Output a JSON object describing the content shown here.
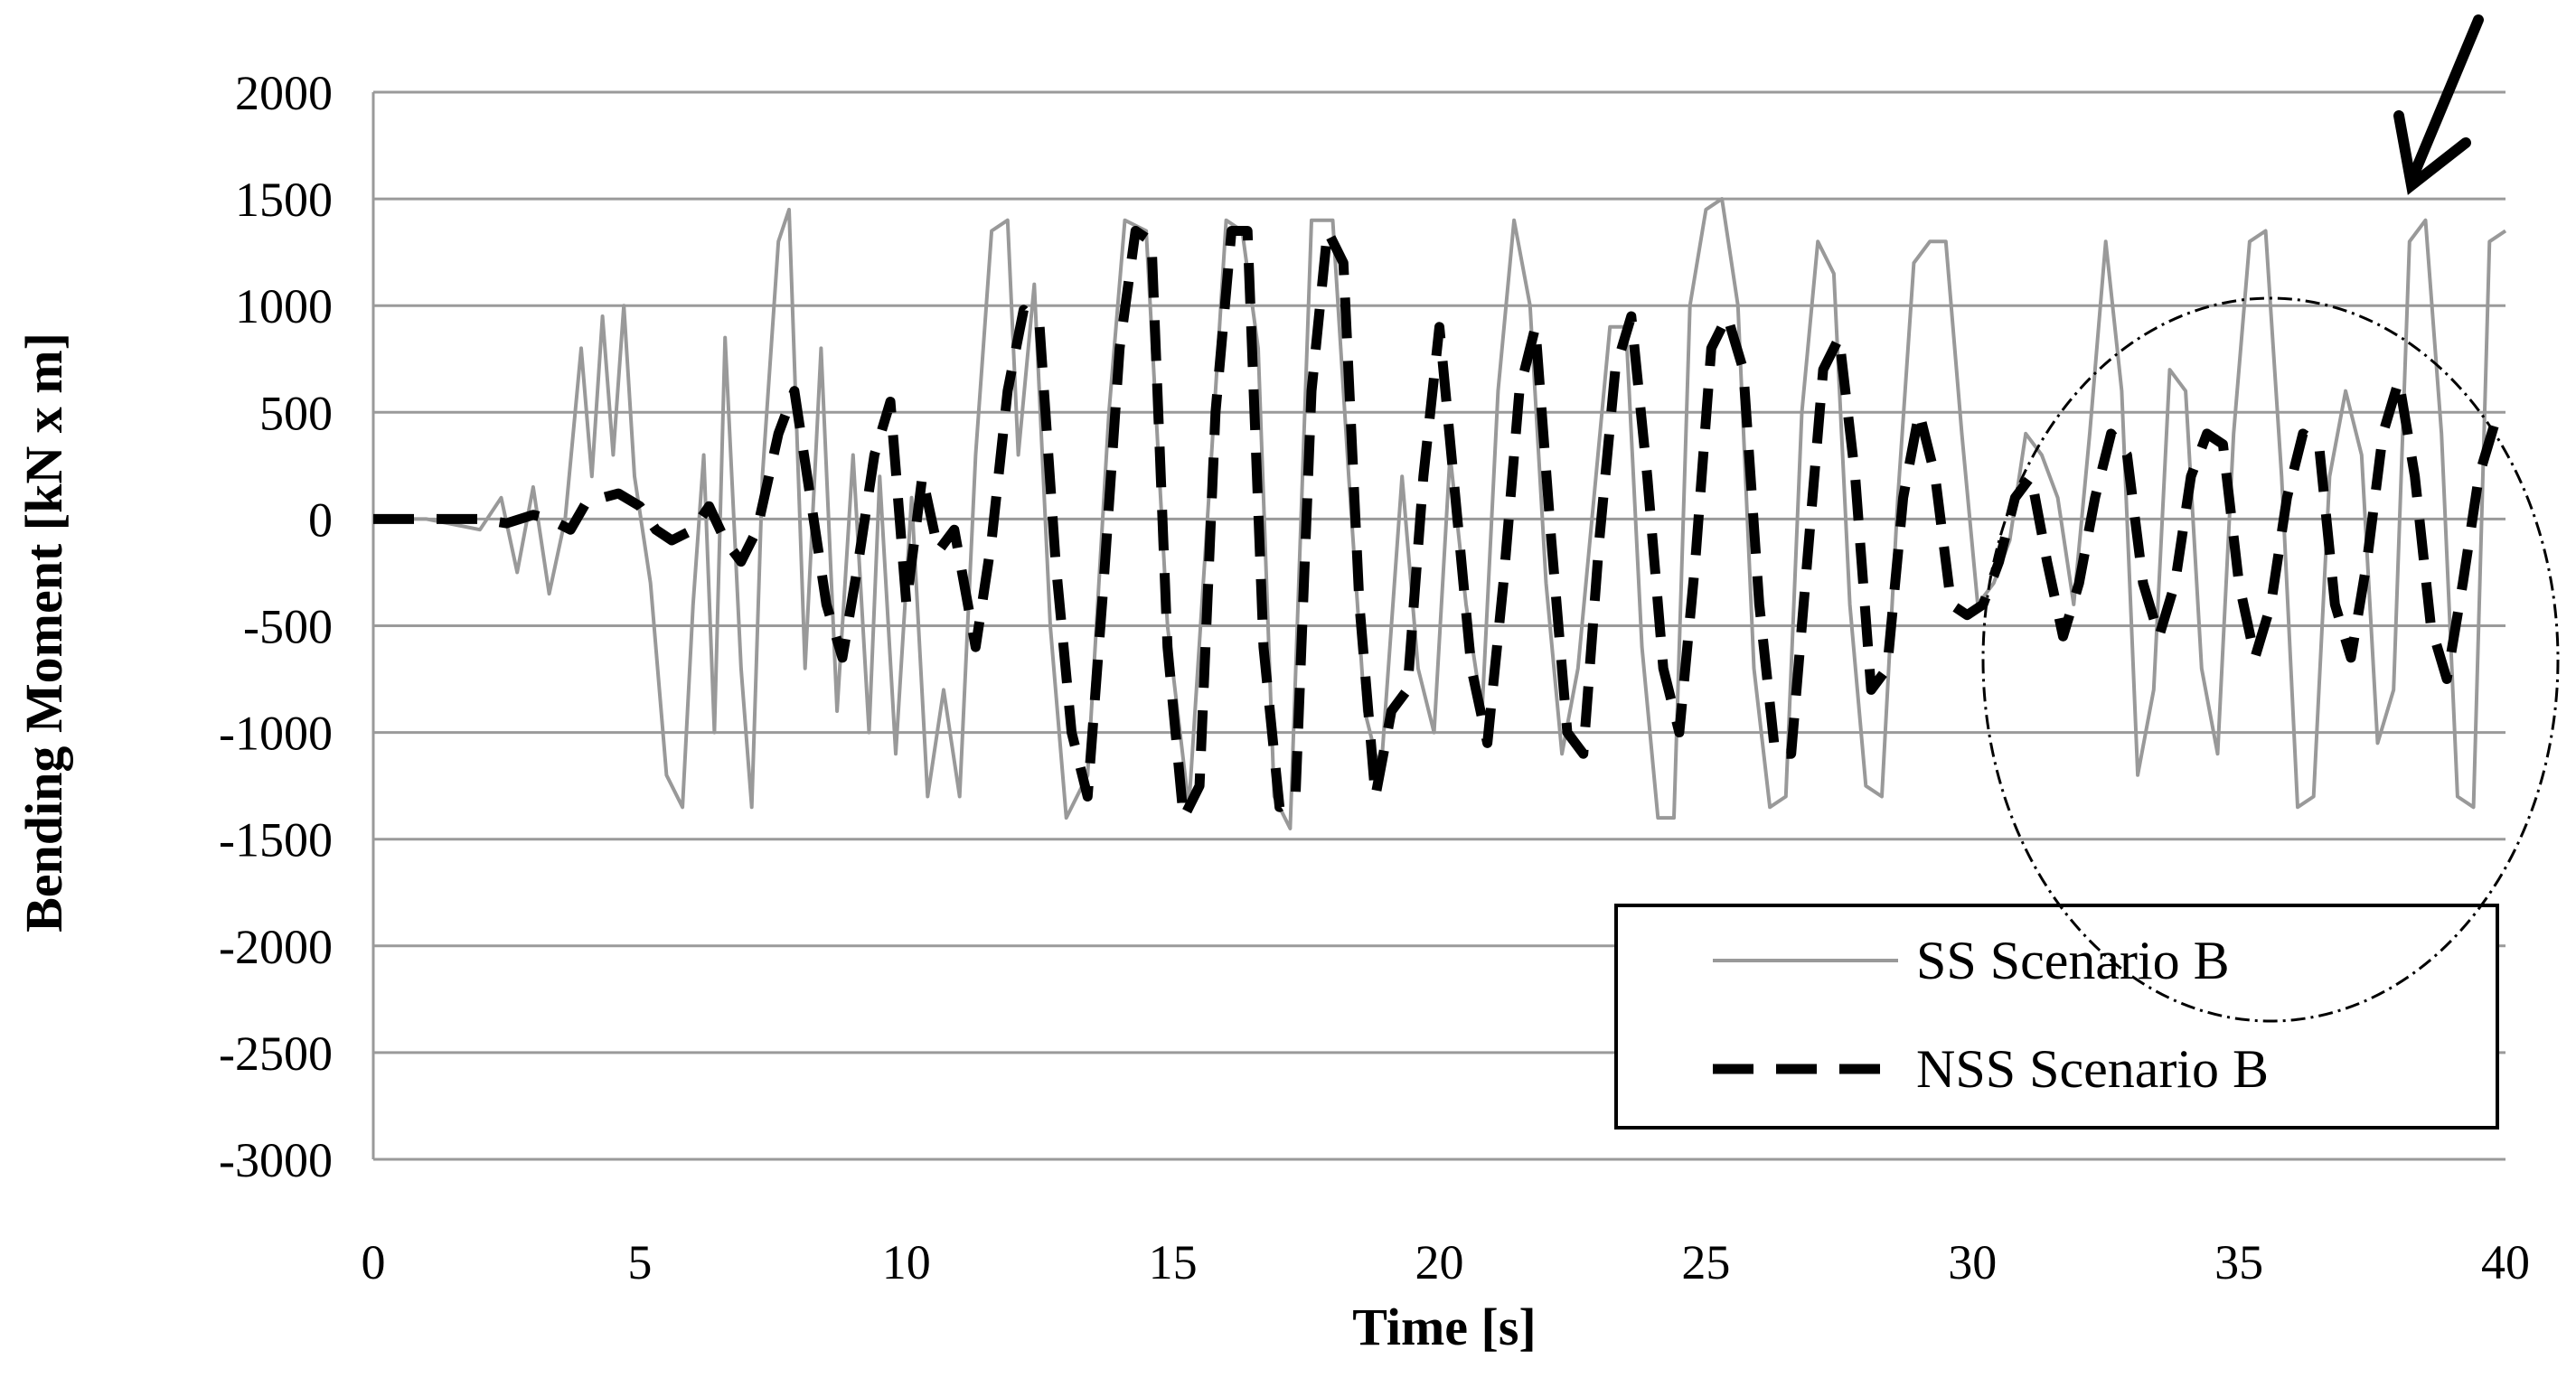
{
  "chart_data": {
    "type": "line",
    "title": "",
    "xlabel": "Time [s]",
    "ylabel": "Bending Moment [kN x m]",
    "xlim": [
      0,
      40
    ],
    "ylim": [
      -3000,
      2000
    ],
    "x_ticks": [
      0,
      5,
      10,
      15,
      20,
      25,
      30,
      35,
      40
    ],
    "y_ticks": [
      2000,
      1500,
      1000,
      500,
      0,
      -500,
      -1000,
      -1500,
      -2000,
      -2500,
      -3000
    ],
    "grid": "horizontal",
    "legend_position": "bottom-right",
    "series": [
      {
        "name": "SS Scenario B",
        "color": "#999999",
        "style": "solid",
        "x": [
          0,
          1,
          2,
          2.4,
          2.7,
          3.0,
          3.3,
          3.6,
          3.9,
          4.1,
          4.3,
          4.5,
          4.7,
          4.9,
          5.2,
          5.5,
          5.8,
          6.0,
          6.2,
          6.4,
          6.6,
          6.9,
          7.1,
          7.3,
          7.6,
          7.8,
          8.1,
          8.4,
          8.7,
          9.0,
          9.3,
          9.5,
          9.8,
          10.1,
          10.4,
          10.7,
          11.0,
          11.3,
          11.6,
          11.9,
          12.1,
          12.4,
          12.7,
          13.0,
          13.4,
          13.8,
          14.1,
          14.5,
          14.9,
          15.3,
          15.7,
          16.0,
          16.3,
          16.6,
          16.9,
          17.2,
          17.6,
          18.0,
          18.3,
          18.6,
          18.9,
          19.3,
          19.6,
          19.9,
          20.2,
          20.5,
          20.8,
          21.1,
          21.4,
          21.7,
          22.0,
          22.3,
          22.6,
          22.9,
          23.2,
          23.5,
          23.8,
          24.1,
          24.4,
          24.7,
          25.0,
          25.3,
          25.6,
          25.9,
          26.2,
          26.5,
          26.8,
          27.1,
          27.4,
          27.7,
          28.0,
          28.3,
          28.6,
          28.9,
          29.2,
          29.5,
          29.8,
          30.1,
          30.4,
          30.7,
          31.0,
          31.3,
          31.6,
          31.9,
          32.2,
          32.5,
          32.8,
          33.1,
          33.4,
          33.7,
          34.0,
          34.3,
          34.6,
          34.9,
          35.2,
          35.5,
          35.8,
          36.1,
          36.4,
          36.7,
          37.0,
          37.3,
          37.6,
          37.9,
          38.2,
          38.5,
          38.8,
          39.1,
          39.4,
          39.7,
          40.0
        ],
        "values": [
          0,
          0,
          -50,
          100,
          -250,
          150,
          -350,
          0,
          800,
          200,
          950,
          300,
          1000,
          200,
          -300,
          -1200,
          -1350,
          -400,
          300,
          -1000,
          850,
          -700,
          -1350,
          200,
          1300,
          1450,
          -700,
          800,
          -900,
          300,
          -1000,
          200,
          -1100,
          100,
          -1300,
          -800,
          -1300,
          300,
          1350,
          1400,
          300,
          1100,
          -500,
          -1400,
          -1200,
          500,
          1400,
          1350,
          -500,
          -1350,
          200,
          1400,
          1350,
          800,
          -1300,
          -1450,
          1400,
          1400,
          200,
          -900,
          -1200,
          200,
          -700,
          -1000,
          300,
          -400,
          -900,
          600,
          1400,
          1000,
          -300,
          -1100,
          -700,
          100,
          900,
          900,
          -600,
          -1400,
          -1400,
          1000,
          1450,
          1500,
          1000,
          -700,
          -1350,
          -1300,
          500,
          1300,
          1150,
          -400,
          -1250,
          -1300,
          100,
          1200,
          1300,
          1300,
          400,
          -400,
          -300,
          -100,
          400,
          300,
          100,
          -400,
          400,
          1300,
          600,
          -1200,
          -800,
          700,
          600,
          -700,
          -1100,
          400,
          1300,
          1350,
          200,
          -1350,
          -1300,
          200,
          600,
          300,
          -1050,
          -800,
          1300,
          1400,
          400,
          -1300,
          -1350,
          1300,
          1350
        ]
      },
      {
        "name": "NSS Scenario B",
        "color": "#000000",
        "style": "dashed",
        "x": [
          0,
          1.0,
          1.5,
          2.0,
          2.5,
          3.0,
          3.3,
          3.7,
          4.0,
          4.3,
          4.6,
          5.0,
          5.3,
          5.6,
          6.0,
          6.3,
          6.6,
          6.9,
          7.2,
          7.6,
          7.9,
          8.2,
          8.5,
          8.8,
          9.1,
          9.4,
          9.7,
          10.0,
          10.3,
          10.6,
          10.9,
          11.3,
          11.6,
          11.9,
          12.2,
          12.5,
          12.8,
          13.1,
          13.4,
          13.7,
          14.0,
          14.3,
          14.6,
          14.9,
          15.2,
          15.5,
          15.8,
          16.1,
          16.4,
          16.7,
          17.0,
          17.3,
          17.6,
          17.9,
          18.2,
          18.5,
          18.8,
          19.1,
          19.4,
          19.7,
          20.0,
          20.3,
          20.6,
          20.9,
          21.2,
          21.5,
          21.8,
          22.1,
          22.4,
          22.7,
          23.0,
          23.3,
          23.6,
          23.9,
          24.2,
          24.5,
          24.8,
          25.1,
          25.4,
          25.7,
          26.0,
          26.3,
          26.6,
          26.9,
          27.2,
          27.5,
          27.8,
          28.1,
          28.4,
          28.7,
          29.0,
          29.3,
          29.6,
          29.9,
          30.2,
          30.5,
          30.8,
          31.1,
          31.4,
          31.7,
          32.0,
          32.3,
          32.6,
          32.9,
          33.2,
          33.5,
          33.8,
          34.1,
          34.4,
          34.7,
          35.0,
          35.3,
          35.6,
          35.9,
          36.2,
          36.5,
          36.8,
          37.1,
          37.4,
          37.7,
          38.0,
          38.3,
          38.6,
          38.9,
          39.2,
          39.5,
          39.8,
          40.0
        ],
        "values": [
          0,
          0,
          0,
          0,
          -20,
          20,
          0,
          -50,
          80,
          100,
          120,
          60,
          -50,
          -100,
          -50,
          60,
          -100,
          -200,
          -50,
          400,
          600,
          100,
          -400,
          -650,
          -200,
          300,
          550,
          -400,
          200,
          -150,
          -50,
          -600,
          -100,
          600,
          980,
          900,
          -200,
          -1000,
          -1300,
          -300,
          800,
          1350,
          1300,
          -600,
          -1400,
          -1250,
          500,
          1350,
          1350,
          -600,
          -1350,
          -1300,
          600,
          1350,
          1200,
          -400,
          -1300,
          -900,
          -800,
          200,
          900,
          100,
          -700,
          -1050,
          -300,
          600,
          900,
          -100,
          -1000,
          -1100,
          -100,
          700,
          950,
          200,
          -700,
          -1000,
          -200,
          800,
          950,
          700,
          -400,
          -1100,
          -1100,
          -200,
          700,
          850,
          200,
          -800,
          -700,
          100,
          500,
          200,
          -400,
          -450,
          -400,
          -200,
          100,
          200,
          -200,
          -550,
          -300,
          100,
          400,
          300,
          -300,
          -550,
          -300,
          200,
          400,
          350,
          -300,
          -650,
          -400,
          100,
          400,
          350,
          -400,
          -650,
          -200,
          400,
          650,
          200,
          -500,
          -750,
          -300,
          200,
          450,
          400
        ]
      }
    ],
    "annotations": [
      "dash-dot ellipse around 30-40 s region",
      "arrow pointing to ellipse"
    ]
  }
}
